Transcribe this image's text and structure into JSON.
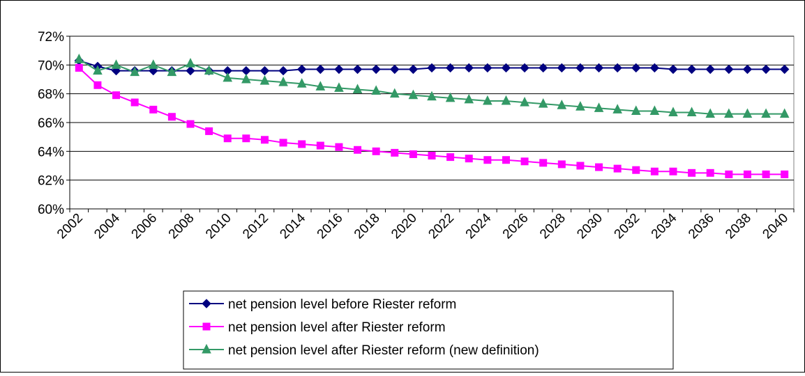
{
  "chart_data": {
    "type": "line",
    "categories": [
      "2002",
      null,
      "2004",
      null,
      "2006",
      null,
      "2008",
      null,
      "2010",
      null,
      "2012",
      null,
      "2014",
      null,
      "2016",
      null,
      "2018",
      null,
      "2020",
      null,
      "2022",
      null,
      "2024",
      null,
      "2026",
      null,
      "2028",
      null,
      "2030",
      null,
      "2032",
      null,
      "2034",
      null,
      "2036",
      null,
      "2038",
      null,
      "2040"
    ],
    "series": [
      {
        "name": "net pension level before Riester reform",
        "color": "#000080",
        "marker": "diamond",
        "values": [
          70.3,
          69.9,
          69.6,
          69.6,
          69.6,
          69.6,
          69.6,
          69.6,
          69.6,
          69.6,
          69.6,
          69.6,
          69.7,
          69.7,
          69.7,
          69.7,
          69.7,
          69.7,
          69.7,
          69.8,
          69.8,
          69.8,
          69.8,
          69.8,
          69.8,
          69.8,
          69.8,
          69.8,
          69.8,
          69.8,
          69.8,
          69.8,
          69.7,
          69.7,
          69.7,
          69.7,
          69.7,
          69.7,
          69.7
        ]
      },
      {
        "name": "net pension level after Riester reform",
        "color": "#ff00ff",
        "marker": "square",
        "values": [
          69.8,
          68.6,
          67.9,
          67.4,
          66.9,
          66.4,
          65.9,
          65.4,
          64.9,
          64.9,
          64.8,
          64.6,
          64.5,
          64.4,
          64.3,
          64.1,
          64.0,
          63.9,
          63.8,
          63.7,
          63.6,
          63.5,
          63.4,
          63.4,
          63.3,
          63.2,
          63.1,
          63.0,
          62.9,
          62.8,
          62.7,
          62.6,
          62.6,
          62.5,
          62.5,
          62.4,
          62.4,
          62.4,
          62.4
        ]
      },
      {
        "name": "net pension level after Riester reform (new definition)",
        "color": "#339966",
        "marker": "triangle",
        "values": [
          70.4,
          69.6,
          70.0,
          69.5,
          70.0,
          69.5,
          70.1,
          69.6,
          69.1,
          69.0,
          68.9,
          68.8,
          68.7,
          68.5,
          68.4,
          68.3,
          68.2,
          68.0,
          67.9,
          67.8,
          67.7,
          67.6,
          67.5,
          67.5,
          67.4,
          67.3,
          67.2,
          67.1,
          67.0,
          66.9,
          66.8,
          66.8,
          66.7,
          66.7,
          66.6,
          66.6,
          66.6,
          66.6,
          66.6
        ]
      }
    ],
    "ylim": [
      60,
      72
    ],
    "yticks": [
      {
        "value": 60,
        "label": "60%"
      },
      {
        "value": 62,
        "label": "62%"
      },
      {
        "value": 64,
        "label": "64%"
      },
      {
        "value": 66,
        "label": "66%"
      },
      {
        "value": 68,
        "label": "68%"
      },
      {
        "value": 70,
        "label": "70%"
      },
      {
        "value": 72,
        "label": "72%"
      }
    ],
    "grid": true,
    "legend": "bottom"
  }
}
